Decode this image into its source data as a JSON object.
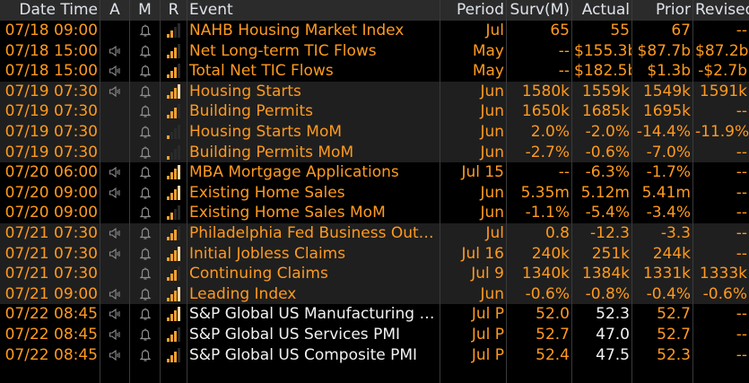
{
  "header": {
    "datetime": "Date Time",
    "a": "A",
    "m": "M",
    "r": "R",
    "event": "Event",
    "period": "Period",
    "survey": "Surv(M)",
    "actual": "Actual",
    "prior": "Prior",
    "revised": "Revised"
  },
  "colors": {
    "accent": "#ff9a1f",
    "highlight": "#ffd6a8",
    "header_bg": "#2b2b2b",
    "row_alt_bg": "#1f1f1f"
  },
  "rows": [
    {
      "datetime": "07/18 09:00",
      "audio": false,
      "alert": true,
      "relevance": 2,
      "event": "NAHB Housing Market Index",
      "period": "Jul",
      "survey": "65",
      "actual": "55",
      "prior": "67",
      "revised": "--"
    },
    {
      "datetime": "07/18 15:00",
      "audio": true,
      "alert": true,
      "relevance": 3,
      "event": "Net Long-term TIC Flows",
      "period": "May",
      "survey": "--",
      "actual": "$155.3b",
      "prior": "$87.7b",
      "revised": "$87.2b"
    },
    {
      "datetime": "07/18 15:00",
      "audio": true,
      "alert": true,
      "relevance": 3,
      "event": "Total Net TIC Flows",
      "period": "May",
      "survey": "--",
      "actual": "$182.5b",
      "prior": "$1.3b",
      "revised": "-$2.7b"
    },
    {
      "datetime": "07/19 07:30",
      "audio": true,
      "alert": true,
      "relevance": 4,
      "event": "Housing Starts",
      "period": "Jun",
      "survey": "1580k",
      "actual": "1559k",
      "prior": "1549k",
      "revised": "1591k"
    },
    {
      "datetime": "07/19 07:30",
      "audio": false,
      "alert": true,
      "relevance": 3,
      "event": "Building Permits",
      "period": "Jun",
      "survey": "1650k",
      "actual": "1685k",
      "prior": "1695k",
      "revised": "--"
    },
    {
      "datetime": "07/19 07:30",
      "audio": false,
      "alert": true,
      "relevance": 1,
      "event": "Housing Starts MoM",
      "period": "Jun",
      "survey": "2.0%",
      "actual": "-2.0%",
      "prior": "-14.4%",
      "revised": "-11.9%"
    },
    {
      "datetime": "07/19 07:30",
      "audio": false,
      "alert": true,
      "relevance": 1,
      "event": "Building Permits MoM",
      "period": "Jun",
      "survey": "-2.7%",
      "actual": "-0.6%",
      "prior": "-7.0%",
      "revised": "--"
    },
    {
      "datetime": "07/20 06:00",
      "audio": true,
      "alert": true,
      "relevance": 4,
      "event": "MBA Mortgage Applications",
      "period": "Jul 15",
      "survey": "--",
      "actual": "-6.3%",
      "prior": "-1.7%",
      "revised": "--"
    },
    {
      "datetime": "07/20 09:00",
      "audio": true,
      "alert": true,
      "relevance": 4,
      "event": "Existing Home Sales",
      "period": "Jun",
      "survey": "5.35m",
      "actual": "5.12m",
      "prior": "5.41m",
      "revised": "--"
    },
    {
      "datetime": "07/20 09:00",
      "audio": false,
      "alert": true,
      "relevance": 2,
      "event": "Existing Home Sales MoM",
      "period": "Jun",
      "survey": "-1.1%",
      "actual": "-5.4%",
      "prior": "-3.4%",
      "revised": "--"
    },
    {
      "datetime": "07/21 07:30",
      "audio": true,
      "alert": true,
      "relevance": 3,
      "event": "Philadelphia Fed Business Outlo...",
      "period": "Jul",
      "survey": "0.8",
      "actual": "-12.3",
      "prior": "-3.3",
      "revised": "--"
    },
    {
      "datetime": "07/21 07:30",
      "audio": true,
      "alert": true,
      "relevance": 4,
      "event": "Initial Jobless Claims",
      "period": "Jul 16",
      "survey": "240k",
      "actual": "251k",
      "prior": "244k",
      "revised": "--"
    },
    {
      "datetime": "07/21 07:30",
      "audio": false,
      "alert": true,
      "relevance": 3,
      "event": "Continuing Claims",
      "period": "Jul 9",
      "survey": "1340k",
      "actual": "1384k",
      "prior": "1331k",
      "revised": "1333k"
    },
    {
      "datetime": "07/21 09:00",
      "audio": true,
      "alert": true,
      "relevance": 4,
      "event": "Leading Index",
      "period": "Jun",
      "survey": "-0.6%",
      "actual": "-0.8%",
      "prior": "-0.4%",
      "revised": "-0.6%"
    },
    {
      "datetime": "07/22 08:45",
      "audio": true,
      "alert": true,
      "relevance": 4,
      "event": "S&P Global US Manufacturing P...",
      "period": "Jul P",
      "survey": "52.0",
      "actual": "52.3",
      "prior": "52.7",
      "revised": "--",
      "pending": true
    },
    {
      "datetime": "07/22 08:45",
      "audio": true,
      "alert": true,
      "relevance": 3,
      "event": "S&P Global US Services PMI",
      "period": "Jul P",
      "survey": "52.7",
      "actual": "47.0",
      "prior": "52.7",
      "revised": "--",
      "pending": true
    },
    {
      "datetime": "07/22 08:45",
      "audio": true,
      "alert": true,
      "relevance": 3,
      "event": "S&P Global US Composite PMI",
      "period": "Jul P",
      "survey": "52.4",
      "actual": "47.5",
      "prior": "52.3",
      "revised": "--",
      "pending": true
    }
  ]
}
